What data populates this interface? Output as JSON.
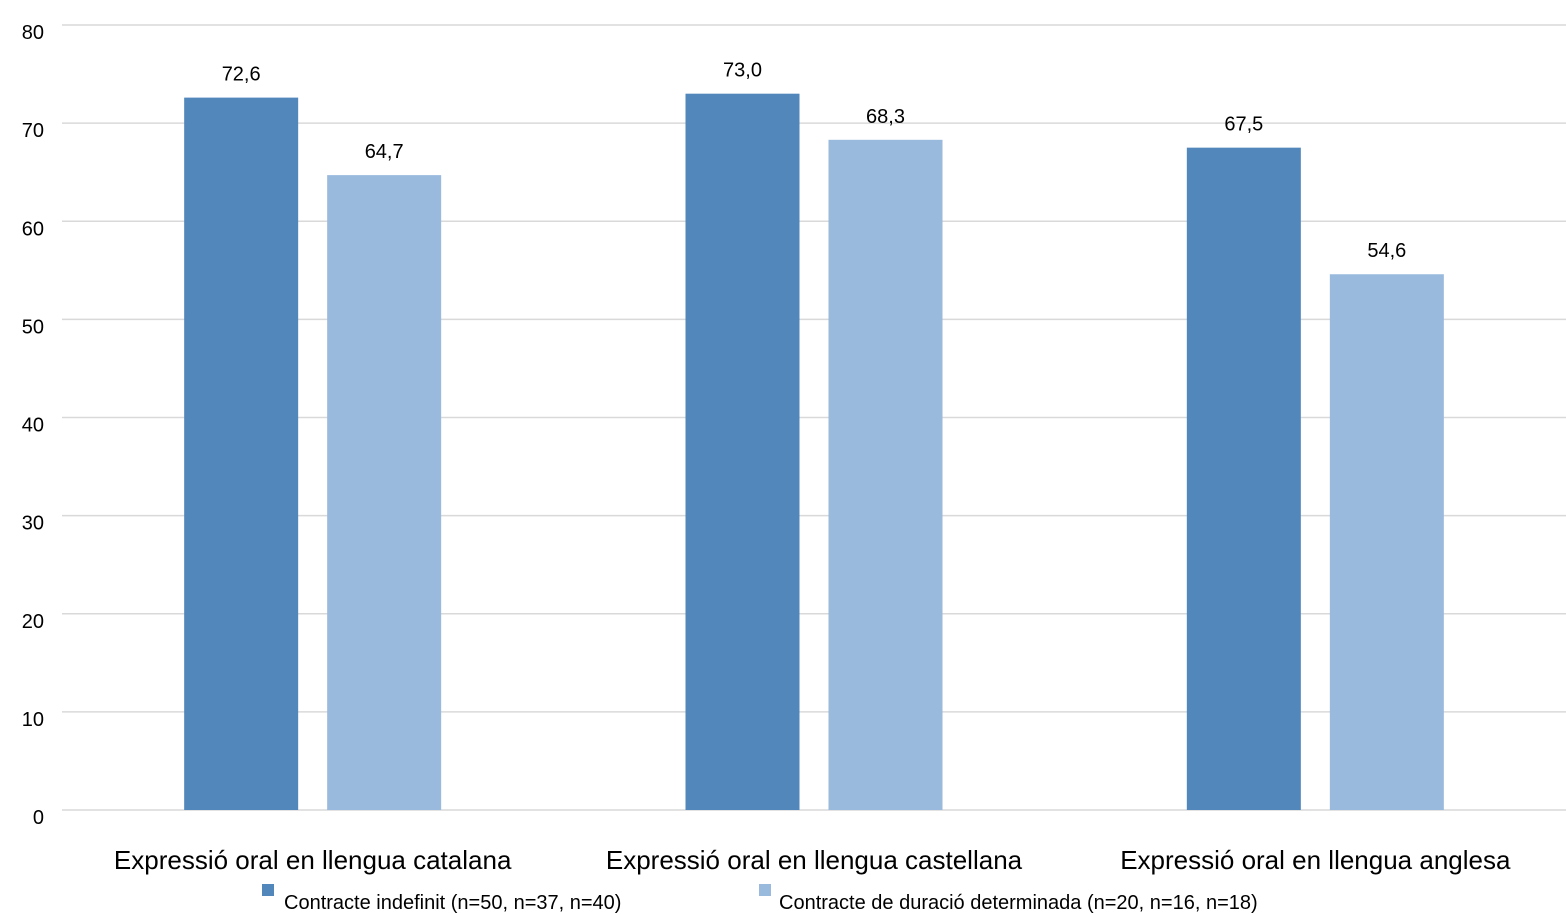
{
  "chart_data": {
    "type": "bar",
    "categories": [
      "Expressió oral en llengua catalana",
      "Expressió oral en llengua castellana",
      "Expressió oral en llengua anglesa"
    ],
    "series": [
      {
        "name": "Contracte indefinit (n=50, n=37, n=40)",
        "values": [
          72.6,
          73.0,
          67.5
        ],
        "labels": [
          "72,6",
          "73,0",
          "67,5"
        ],
        "color": "#5287BC"
      },
      {
        "name": "Contracte de duració determinada (n=20, n=16, n=18)",
        "values": [
          64.7,
          68.3,
          54.6
        ],
        "labels": [
          "64,7",
          "68,3",
          "54,6"
        ],
        "color": "#99B9DD"
      }
    ],
    "ylim": [
      0,
      80
    ],
    "yticks": [
      0,
      10,
      20,
      30,
      40,
      50,
      60,
      70,
      80
    ],
    "grid": true,
    "legend": "bottom",
    "title": "",
    "xlabel": "",
    "ylabel": ""
  }
}
